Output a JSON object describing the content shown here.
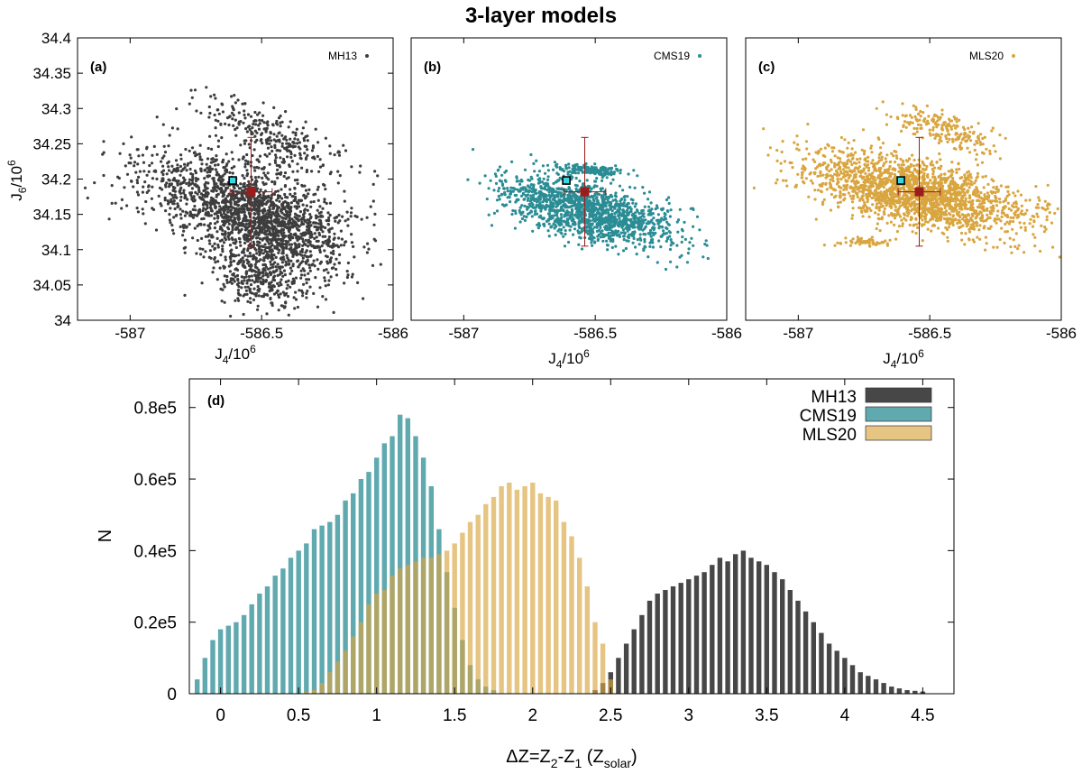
{
  "figure_title": "3-layer models",
  "colors": {
    "MH13": "#3d3d3d",
    "CMS19": "#2a8c94",
    "MLS20": "#d9a53f",
    "observation": "#9b1c1c",
    "reference_fill": "#3cd6e0",
    "axis": "#000000"
  },
  "chart_data": [
    {
      "type": "scatter",
      "panel_label": "(a)",
      "legend": "MH13",
      "xlabel_main": "J",
      "xlabel_sub": "4",
      "xlabel_rest": "/10",
      "xlabel_sup": "6",
      "ylabel_main": "J",
      "ylabel_sub": "6",
      "ylabel_rest": "/10",
      "ylabel_sup": "6",
      "xlim": [
        -587.2,
        -586.0
      ],
      "ylim": [
        34.0,
        34.4
      ],
      "xticks": [
        -587,
        -586.5,
        -586
      ],
      "xtick_labels": [
        "-587",
        "-586.5",
        "-586"
      ],
      "yticks": [
        34,
        34.05,
        34.1,
        34.15,
        34.2,
        34.25,
        34.3,
        34.35,
        34.4
      ],
      "ytick_labels": [
        "34",
        "34.05",
        "34.1",
        "34.15",
        "34.2",
        "34.25",
        "34.3",
        "34.35",
        "34.4"
      ],
      "point_clouds": [
        {
          "cx": -586.57,
          "cy": 34.16,
          "sx": 0.2,
          "sy": 0.04,
          "rho": -0.55,
          "n": 1500
        },
        {
          "cx": -586.45,
          "cy": 34.12,
          "sx": 0.12,
          "sy": 0.04,
          "rho": -0.4,
          "n": 500
        },
        {
          "cx": -586.52,
          "cy": 34.06,
          "sx": 0.08,
          "sy": 0.025,
          "rho": -0.2,
          "n": 300
        },
        {
          "cx": -586.45,
          "cy": 34.26,
          "sx": 0.14,
          "sy": 0.025,
          "rho": -0.7,
          "n": 260
        }
      ],
      "reference_point": {
        "x": -586.61,
        "y": 34.198
      },
      "observation": {
        "x": -586.54,
        "y": 34.182,
        "xerr": 0.08,
        "yerr": 0.077
      }
    },
    {
      "type": "scatter",
      "panel_label": "(b)",
      "legend": "CMS19",
      "xlabel_main": "J",
      "xlabel_sub": "4",
      "xlabel_rest": "/10",
      "xlabel_sup": "6",
      "xlim": [
        -587.2,
        -586.0
      ],
      "ylim": [
        34.0,
        34.4
      ],
      "xticks": [
        -587,
        -586.5,
        -586
      ],
      "xtick_labels": [
        "-587",
        "-586.5",
        "-586"
      ],
      "point_clouds": [
        {
          "cx": -586.53,
          "cy": 34.155,
          "sx": 0.16,
          "sy": 0.024,
          "rho": -0.6,
          "n": 1500
        },
        {
          "cx": -586.52,
          "cy": 34.213,
          "sx": 0.07,
          "sy": 0.004,
          "rho": -0.5,
          "n": 150
        }
      ],
      "reference_point": {
        "x": -586.61,
        "y": 34.198
      },
      "observation": {
        "x": -586.54,
        "y": 34.182,
        "xerr": 0.08,
        "yerr": 0.077
      }
    },
    {
      "type": "scatter",
      "panel_label": "(c)",
      "legend": "MLS20",
      "xlabel_main": "J",
      "xlabel_sub": "4",
      "xlabel_rest": "/10",
      "xlabel_sup": "6",
      "xlim": [
        -587.2,
        -586.0
      ],
      "ylim": [
        34.0,
        34.4
      ],
      "xticks": [
        -587,
        -586.5,
        -586
      ],
      "xtick_labels": [
        "-587",
        "-586.5",
        "-586"
      ],
      "point_clouds": [
        {
          "cx": -586.55,
          "cy": 34.18,
          "sx": 0.2,
          "sy": 0.028,
          "rho": -0.55,
          "n": 2000
        },
        {
          "cx": -586.44,
          "cy": 34.27,
          "sx": 0.09,
          "sy": 0.015,
          "rho": -0.7,
          "n": 200
        },
        {
          "cx": -586.75,
          "cy": 34.11,
          "sx": 0.05,
          "sy": 0.003,
          "rho": 0,
          "n": 60
        }
      ],
      "reference_point": {
        "x": -586.61,
        "y": 34.198
      },
      "observation": {
        "x": -586.54,
        "y": 34.182,
        "xerr": 0.08,
        "yerr": 0.077
      }
    },
    {
      "type": "bar",
      "panel_label": "(d)",
      "xlabel_prefix": "ΔZ=Z",
      "xlabel_sub1": "2",
      "xlabel_mid": "-Z",
      "xlabel_sub2": "1",
      "xlabel_open": " (Z",
      "xlabel_sub3": "solar",
      "xlabel_close": ")",
      "ylabel": "N",
      "xlim": [
        -0.2,
        4.7
      ],
      "ylim": [
        0,
        88000
      ],
      "xticks": [
        0,
        0.5,
        1,
        1.5,
        2,
        2.5,
        3,
        3.5,
        4,
        4.5
      ],
      "xtick_labels": [
        "0",
        "0.5",
        "1",
        "1.5",
        "2",
        "2.5",
        "3",
        "3.5",
        "4",
        "4.5"
      ],
      "yticks": [
        0,
        20000,
        40000,
        60000,
        80000
      ],
      "ytick_labels": [
        "0",
        "0.2e5",
        "0.4e5",
        "0.6e5",
        "0.8e5"
      ],
      "bin_width": 0.05,
      "series": [
        {
          "name": "MH13",
          "x_start": 2.4,
          "values": [
            1000,
            3000,
            6000,
            10000,
            14000,
            18000,
            22000,
            26000,
            28000,
            29000,
            30000,
            31000,
            32000,
            33000,
            34000,
            36000,
            38000,
            37000,
            39000,
            40000,
            38000,
            37000,
            36000,
            34000,
            32000,
            29000,
            26000,
            23000,
            20000,
            17000,
            14000,
            12000,
            10000,
            8000,
            6000,
            5000,
            4000,
            3000,
            2000,
            1500,
            1000,
            800,
            600
          ]
        },
        {
          "name": "CMS19",
          "x_start": -0.15,
          "values": [
            4000,
            10000,
            15000,
            18000,
            19000,
            20000,
            22000,
            25000,
            28000,
            30000,
            33000,
            35000,
            38000,
            40000,
            42000,
            46000,
            47000,
            48000,
            50000,
            54000,
            56000,
            60000,
            62000,
            66000,
            70000,
            72000,
            78000,
            77000,
            72000,
            66000,
            58000,
            46000,
            34000,
            24000,
            15000,
            8000,
            4000,
            2000,
            1000
          ]
        },
        {
          "name": "MLS20",
          "x_start": 0.55,
          "values": [
            500,
            1000,
            3000,
            6000,
            9000,
            12000,
            16000,
            20000,
            25000,
            28000,
            29000,
            33000,
            35000,
            36000,
            37000,
            38000,
            38000,
            39000,
            40000,
            42000,
            45000,
            48000,
            50000,
            53000,
            55000,
            58000,
            59000,
            57000,
            58000,
            59000,
            56000,
            55000,
            54000,
            48000,
            44000,
            38000,
            30000,
            20000,
            14000,
            4000
          ]
        }
      ]
    }
  ]
}
